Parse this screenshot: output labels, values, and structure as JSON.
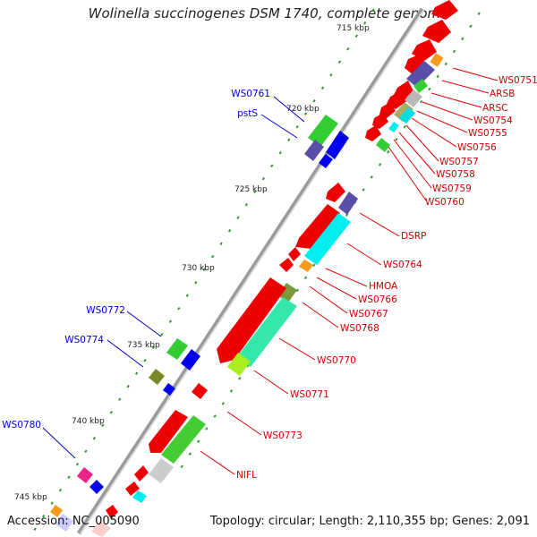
{
  "title": "Wolinella succinogenes DSM 1740, complete genome",
  "footer": {
    "accession": "Accession: NC_005090",
    "topology": "Topology: circular; Length: 2,110,355 bp; Genes: 2,091"
  },
  "colors": {
    "red_gene": "#ff0000",
    "blue_label": "#0000cc",
    "red_label": "#cc0000",
    "tick": "#2a9a2a",
    "backbone": "#888888"
  },
  "ruler": [
    {
      "label": "715 kbp",
      "kbp": 715
    },
    {
      "label": "720 kbp",
      "kbp": 720
    },
    {
      "label": "725 kbp",
      "kbp": 725
    },
    {
      "label": "730 kbp",
      "kbp": 730
    },
    {
      "label": "735 kbp",
      "kbp": 735
    },
    {
      "label": "740 kbp",
      "kbp": 740
    },
    {
      "label": "745 kbp",
      "kbp": 745
    }
  ],
  "left_labels": [
    "WS0761",
    "pstS",
    "WS0772",
    "WS0774",
    "WS0780"
  ],
  "right_labels": [
    "WS0751",
    "ARSB",
    "ARSC",
    "WS0754",
    "WS0755",
    "WS0756",
    "WS0757",
    "WS0758",
    "WS0759",
    "WS0760",
    "DSRP",
    "WS0764",
    "HMOA",
    "WS0766",
    "WS0767",
    "WS0768",
    "WS0770",
    "WS0771",
    "WS0773",
    "NIFL"
  ]
}
